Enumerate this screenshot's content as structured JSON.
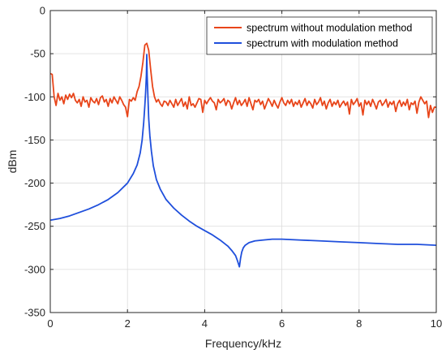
{
  "chart_data": {
    "type": "line",
    "xlabel": "Frequency/kHz",
    "ylabel": "dBm",
    "xlim": [
      0,
      10
    ],
    "ylim": [
      -350,
      0
    ],
    "xticks": [
      0,
      2,
      4,
      6,
      8,
      10
    ],
    "yticks": [
      0,
      -50,
      -100,
      -150,
      -200,
      -250,
      -300,
      -350
    ],
    "xtick_labels": [
      "0",
      "2",
      "4",
      "6",
      "8",
      "10"
    ],
    "ytick_labels": [
      "0",
      "-50",
      "-100",
      "-150",
      "-200",
      "-250",
      "-300",
      "-350"
    ],
    "grid": true,
    "legend_position": "top-right",
    "series": [
      {
        "name": "spectrum without modulation method",
        "color": "#e8451a",
        "x": [
          0,
          0.05,
          0.1,
          0.15,
          0.2,
          0.25,
          0.3,
          0.35,
          0.4,
          0.45,
          0.5,
          0.55,
          0.6,
          0.65,
          0.7,
          0.75,
          0.8,
          0.85,
          0.9,
          0.95,
          1.0,
          1.05,
          1.1,
          1.15,
          1.2,
          1.25,
          1.3,
          1.35,
          1.4,
          1.45,
          1.5,
          1.55,
          1.6,
          1.65,
          1.7,
          1.75,
          1.8,
          1.85,
          1.9,
          1.95,
          2.0,
          2.05,
          2.1,
          2.15,
          2.2,
          2.25,
          2.3,
          2.35,
          2.4,
          2.45,
          2.5,
          2.55,
          2.6,
          2.65,
          2.7,
          2.75,
          2.8,
          2.85,
          2.9,
          2.95,
          3.0,
          3.05,
          3.1,
          3.15,
          3.2,
          3.25,
          3.3,
          3.35,
          3.4,
          3.45,
          3.5,
          3.55,
          3.6,
          3.65,
          3.7,
          3.75,
          3.8,
          3.85,
          3.9,
          3.95,
          4.0,
          4.05,
          4.1,
          4.15,
          4.2,
          4.25,
          4.3,
          4.35,
          4.4,
          4.45,
          4.5,
          4.55,
          4.6,
          4.65,
          4.7,
          4.75,
          4.8,
          4.85,
          4.9,
          4.95,
          5.0,
          5.05,
          5.1,
          5.15,
          5.2,
          5.25,
          5.3,
          5.35,
          5.4,
          5.45,
          5.5,
          5.55,
          5.6,
          5.65,
          5.7,
          5.75,
          5.8,
          5.85,
          5.9,
          5.95,
          6.0,
          6.05,
          6.1,
          6.15,
          6.2,
          6.25,
          6.3,
          6.35,
          6.4,
          6.45,
          6.5,
          6.55,
          6.6,
          6.65,
          6.7,
          6.75,
          6.8,
          6.85,
          6.9,
          6.95,
          7.0,
          7.05,
          7.1,
          7.15,
          7.2,
          7.25,
          7.3,
          7.35,
          7.4,
          7.45,
          7.5,
          7.55,
          7.6,
          7.65,
          7.7,
          7.75,
          7.8,
          7.85,
          7.9,
          7.95,
          8.0,
          8.05,
          8.1,
          8.15,
          8.2,
          8.25,
          8.3,
          8.35,
          8.4,
          8.45,
          8.5,
          8.55,
          8.6,
          8.65,
          8.7,
          8.75,
          8.8,
          8.85,
          8.9,
          8.95,
          9.0,
          9.05,
          9.1,
          9.15,
          9.2,
          9.25,
          9.3,
          9.35,
          9.4,
          9.45,
          9.5,
          9.55,
          9.6,
          9.65,
          9.7,
          9.75,
          9.8,
          9.85,
          9.9,
          9.95,
          10.0
        ],
        "y": [
          -73,
          -74,
          -100,
          -110,
          -96,
          -104,
          -100,
          -108,
          -98,
          -103,
          -97,
          -101,
          -96,
          -104,
          -107,
          -103,
          -111,
          -100,
          -106,
          -104,
          -112,
          -101,
          -105,
          -107,
          -102,
          -109,
          -101,
          -99,
          -106,
          -103,
          -111,
          -102,
          -107,
          -100,
          -104,
          -108,
          -100,
          -104,
          -109,
          -112,
          -123,
          -103,
          -105,
          -101,
          -104,
          -94,
          -88,
          -76,
          -60,
          -40,
          -38,
          -46,
          -68,
          -88,
          -100,
          -106,
          -103,
          -108,
          -111,
          -105,
          -106,
          -110,
          -104,
          -108,
          -112,
          -103,
          -110,
          -106,
          -102,
          -111,
          -106,
          -114,
          -100,
          -110,
          -108,
          -112,
          -107,
          -102,
          -103,
          -118,
          -104,
          -108,
          -104,
          -101,
          -105,
          -107,
          -115,
          -103,
          -107,
          -105,
          -102,
          -110,
          -104,
          -106,
          -114,
          -107,
          -101,
          -109,
          -104,
          -110,
          -107,
          -103,
          -111,
          -101,
          -108,
          -115,
          -104,
          -106,
          -103,
          -109,
          -105,
          -114,
          -108,
          -102,
          -106,
          -111,
          -104,
          -109,
          -113,
          -106,
          -101,
          -107,
          -110,
          -104,
          -108,
          -103,
          -111,
          -106,
          -109,
          -104,
          -112,
          -107,
          -102,
          -110,
          -105,
          -108,
          -113,
          -103,
          -109,
          -106,
          -101,
          -110,
          -105,
          -114,
          -107,
          -103,
          -111,
          -106,
          -109,
          -104,
          -112,
          -108,
          -105,
          -110,
          -106,
          -120,
          -103,
          -109,
          -106,
          -102,
          -111,
          -107,
          -121,
          -104,
          -109,
          -105,
          -111,
          -103,
          -108,
          -114,
          -106,
          -104,
          -110,
          -107,
          -103,
          -112,
          -106,
          -109,
          -105,
          -117,
          -108,
          -104,
          -111,
          -106,
          -110,
          -103,
          -115,
          -107,
          -109,
          -105,
          -119,
          -106,
          -100,
          -104,
          -108,
          -105,
          -124,
          -110,
          -118,
          -112,
          -112
        ]
      },
      {
        "name": "spectrum with modulation method",
        "color": "#1f4fdc",
        "x": [
          0,
          0.25,
          0.5,
          0.75,
          1.0,
          1.25,
          1.5,
          1.75,
          2.0,
          2.15,
          2.25,
          2.33,
          2.38,
          2.42,
          2.45,
          2.47,
          2.49,
          2.5,
          2.51,
          2.53,
          2.55,
          2.58,
          2.62,
          2.67,
          2.75,
          2.85,
          3.0,
          3.2,
          3.4,
          3.6,
          3.8,
          4.0,
          4.2,
          4.4,
          4.6,
          4.7,
          4.8,
          4.85,
          4.9,
          4.93,
          4.96,
          5.0,
          5.05,
          5.15,
          5.3,
          5.5,
          5.75,
          6.0,
          6.5,
          7.0,
          7.5,
          8.0,
          8.5,
          9.0,
          9.5,
          10.0
        ],
        "y": [
          -243,
          -241,
          -238,
          -234,
          -230,
          -225,
          -219,
          -211,
          -200,
          -189,
          -179,
          -165,
          -150,
          -130,
          -110,
          -95,
          -75,
          -51,
          -75,
          -100,
          -125,
          -145,
          -163,
          -180,
          -196,
          -207,
          -219,
          -229,
          -237,
          -244,
          -250,
          -255,
          -260,
          -266,
          -273,
          -278,
          -284,
          -290,
          -297,
          -287,
          -280,
          -275,
          -272,
          -269,
          -267,
          -266,
          -265,
          -265,
          -266,
          -267,
          -268,
          -269,
          -270,
          -271,
          -271,
          -272
        ]
      }
    ]
  }
}
